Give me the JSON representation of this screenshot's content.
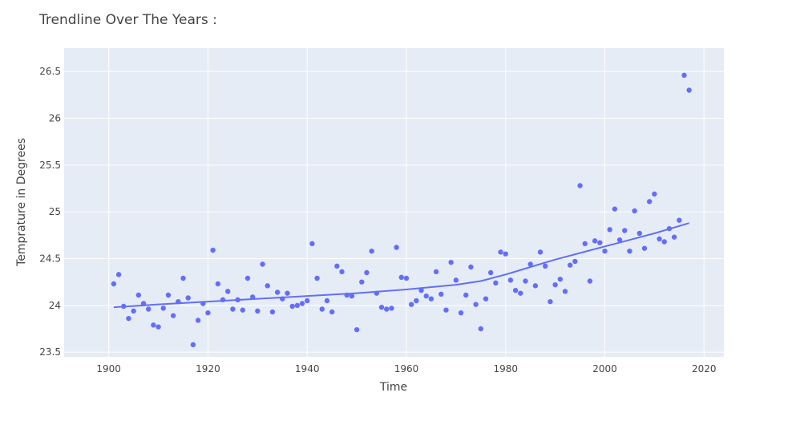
{
  "chart_data": {
    "type": "scatter",
    "title": "Trendline Over The Years :",
    "xlabel": "Time",
    "ylabel": "Temprature in Degrees",
    "xlim": [
      1891,
      2024
    ],
    "ylim": [
      23.45,
      26.75
    ],
    "x_ticks": [
      1900,
      1920,
      1940,
      1960,
      1980,
      2000,
      2020
    ],
    "y_ticks": [
      23.5,
      24,
      24.5,
      25,
      25.5,
      26,
      26.5
    ],
    "x_tick_labels": [
      "1900",
      "1920",
      "1940",
      "1960",
      "1980",
      "2000",
      "2020"
    ],
    "y_tick_labels": [
      "23.5",
      "24",
      "24.5",
      "25",
      "25.5",
      "26",
      "26.5"
    ],
    "grid": true,
    "background_color": "#E5ECF6",
    "marker_color": "#636EFA",
    "trend_color": "#636EFA",
    "series": [
      {
        "type": "scatter",
        "x": [
          1901,
          1902,
          1903,
          1904,
          1905,
          1906,
          1907,
          1908,
          1909,
          1910,
          1911,
          1912,
          1913,
          1914,
          1915,
          1916,
          1917,
          1918,
          1919,
          1920,
          1921,
          1922,
          1923,
          1924,
          1925,
          1926,
          1927,
          1928,
          1929,
          1930,
          1931,
          1932,
          1933,
          1934,
          1935,
          1936,
          1937,
          1938,
          1939,
          1940,
          1941,
          1942,
          1943,
          1944,
          1945,
          1946,
          1947,
          1948,
          1949,
          1950,
          1951,
          1952,
          1953,
          1954,
          1955,
          1956,
          1957,
          1958,
          1959,
          1960,
          1961,
          1962,
          1963,
          1964,
          1965,
          1966,
          1967,
          1968,
          1969,
          1970,
          1971,
          1972,
          1973,
          1974,
          1975,
          1976,
          1977,
          1978,
          1979,
          1980,
          1981,
          1982,
          1983,
          1984,
          1985,
          1986,
          1987,
          1988,
          1989,
          1990,
          1991,
          1992,
          1993,
          1994,
          1995,
          1996,
          1997,
          1998,
          1999,
          2000,
          2001,
          2002,
          2003,
          2004,
          2005,
          2006,
          2007,
          2008,
          2009,
          2010,
          2011,
          2012,
          2013,
          2014,
          2015,
          2016,
          2017
        ],
        "y": [
          24.23,
          24.33,
          23.99,
          23.86,
          23.94,
          24.11,
          24.02,
          23.96,
          23.79,
          23.77,
          23.97,
          24.11,
          23.89,
          24.04,
          24.29,
          24.08,
          23.58,
          23.84,
          24.02,
          23.92,
          24.59,
          24.23,
          24.06,
          24.15,
          23.96,
          24.06,
          23.95,
          24.29,
          24.09,
          23.94,
          24.44,
          24.21,
          23.93,
          24.14,
          24.07,
          24.13,
          23.99,
          24.0,
          24.02,
          24.05,
          24.66,
          24.29,
          23.96,
          24.05,
          23.93,
          24.42,
          24.36,
          24.11,
          24.1,
          23.74,
          24.25,
          24.35,
          24.58,
          24.13,
          23.98,
          23.96,
          23.97,
          24.62,
          24.3,
          24.29,
          24.01,
          24.05,
          24.16,
          24.1,
          24.07,
          24.36,
          24.12,
          23.95,
          24.46,
          24.27,
          23.92,
          24.11,
          24.41,
          24.01,
          23.75,
          24.07,
          24.35,
          24.24,
          24.57,
          24.55,
          24.27,
          24.16,
          24.13,
          24.26,
          24.44,
          24.21,
          24.57,
          24.42,
          24.04,
          24.22,
          24.28,
          24.15,
          24.43,
          24.47,
          25.28,
          24.66,
          24.26,
          24.69,
          24.67,
          24.58,
          24.81,
          25.03,
          24.7,
          24.8,
          24.58,
          25.01,
          24.77,
          24.61,
          25.11,
          25.19,
          24.71,
          24.68,
          24.82,
          24.73,
          24.91,
          26.46,
          26.3
        ]
      },
      {
        "type": "line",
        "x": [
          1901,
          1910,
          1920,
          1930,
          1940,
          1950,
          1960,
          1970,
          1975,
          1980,
          1985,
          1990,
          1995,
          2000,
          2005,
          2010,
          2017
        ],
        "y": [
          23.98,
          24.01,
          24.04,
          24.07,
          24.1,
          24.13,
          24.17,
          24.22,
          24.26,
          24.33,
          24.41,
          24.49,
          24.56,
          24.63,
          24.7,
          24.77,
          24.88
        ]
      }
    ]
  }
}
